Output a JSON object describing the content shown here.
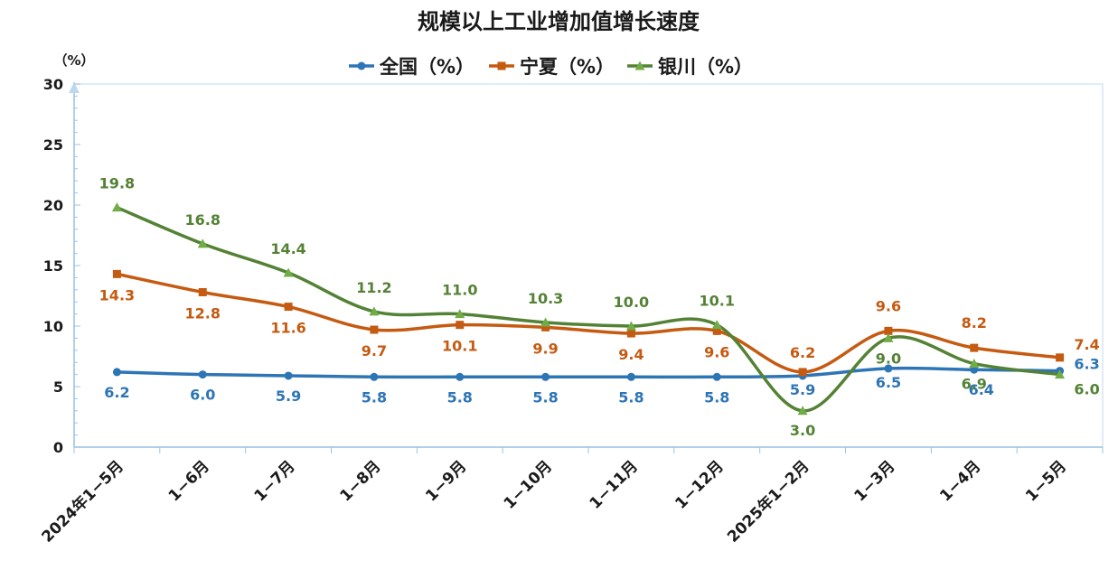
{
  "chart_data": {
    "type": "line",
    "title": "规模以上工业增加值增长速度",
    "ylabel": "（%）",
    "xlabel": "",
    "ylim": [
      0,
      30
    ],
    "yticks": [
      0,
      5,
      10,
      15,
      20,
      25,
      30
    ],
    "grid": false,
    "legend_position": "top-center",
    "categories": [
      "2024年1−5月",
      "1−6月",
      "1−7月",
      "1−8月",
      "1−9月",
      "1−10月",
      "1−11月",
      "1−12月",
      "2025年1−2月",
      "1−3月",
      "1−4月",
      "1−5月"
    ],
    "series": [
      {
        "name": "全国（%）",
        "color": "#2e75b6",
        "marker": "circle",
        "values": [
          6.2,
          6.0,
          5.9,
          5.8,
          5.8,
          5.8,
          5.8,
          5.8,
          5.9,
          6.5,
          6.4,
          6.3
        ],
        "labels": [
          "6.2",
          "6.0",
          "5.9",
          "5.8",
          "5.8",
          "5.8",
          "5.8",
          "5.8",
          "5.9",
          "6.5",
          "6.4",
          "6.3"
        ]
      },
      {
        "name": "宁夏（%）",
        "color": "#c55a11",
        "marker": "square",
        "values": [
          14.3,
          12.8,
          11.6,
          9.7,
          10.1,
          9.9,
          9.4,
          9.6,
          6.2,
          9.6,
          8.2,
          7.4
        ],
        "labels": [
          "14.3",
          "12.8",
          "11.6",
          "9.7",
          "10.1",
          "9.9",
          "9.4",
          "9.6",
          "6.2",
          "9.6",
          "8.2",
          "7.4"
        ]
      },
      {
        "name": "银川（%）",
        "color": "#548235",
        "marker": "triangle",
        "values": [
          19.8,
          16.8,
          14.4,
          11.2,
          11.0,
          10.3,
          10.0,
          10.1,
          3.0,
          9.0,
          6.9,
          6.0
        ],
        "labels": [
          "19.8",
          "16.8",
          "14.4",
          "11.2",
          "11.0",
          "10.3",
          "10.0",
          "10.1",
          "3.0",
          "9.0",
          "6.9",
          "6.0"
        ]
      }
    ]
  }
}
